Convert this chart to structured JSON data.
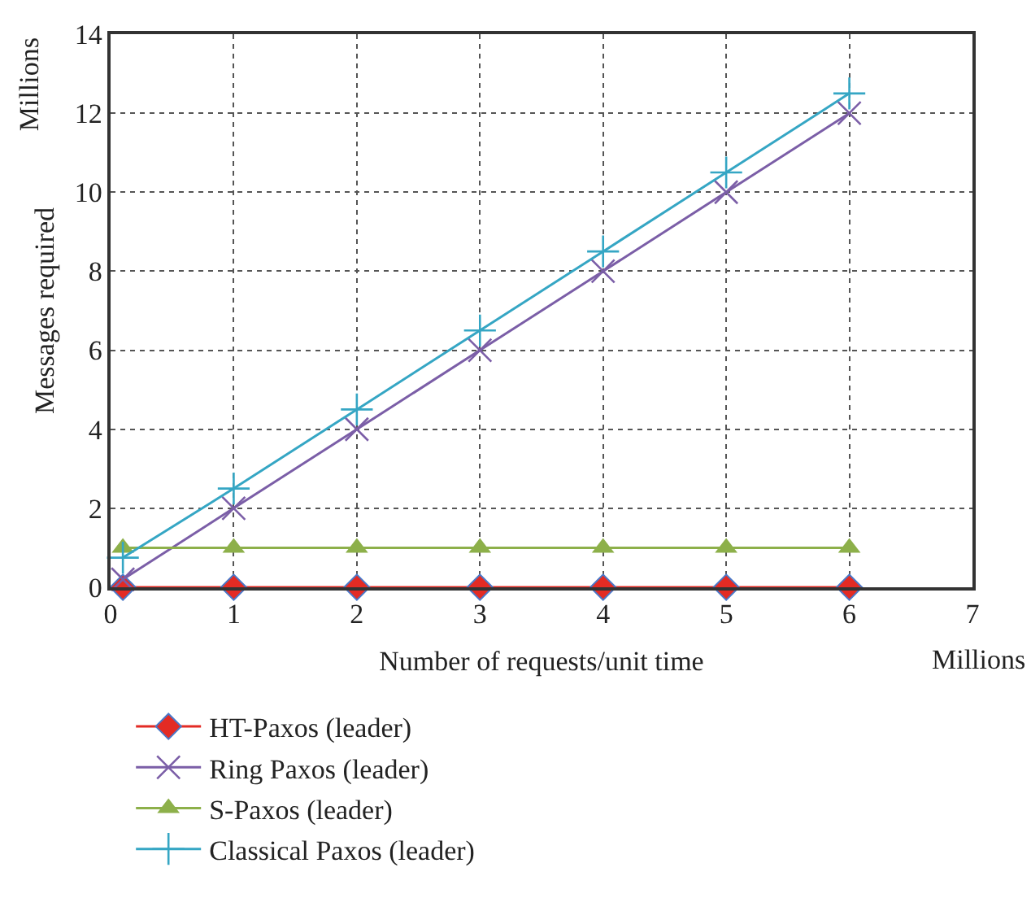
{
  "chart_data": {
    "type": "line",
    "xlabel": "Number of requests/unit time",
    "ylabel": "Messages required",
    "annotations": [
      "Millions",
      "Millions"
    ],
    "x": [
      0.1,
      1,
      2,
      3,
      4,
      5,
      6
    ],
    "series": [
      {
        "name": "HT-Paxos (leader)",
        "color": "#e32b24",
        "marker": "diamond",
        "values": [
          0,
          0,
          0,
          0,
          0,
          0,
          0
        ]
      },
      {
        "name": "Ring Paxos (leader)",
        "color": "#7b5ea7",
        "marker": "x",
        "values": [
          0.2,
          2,
          4,
          6,
          8,
          10,
          12
        ]
      },
      {
        "name": "S-Paxos (leader)",
        "color": "#8db04a",
        "marker": "triangle",
        "values": [
          1,
          1,
          1,
          1,
          1,
          1,
          1
        ]
      },
      {
        "name": "Classical Paxos (leader)",
        "color": "#35a6c4",
        "marker": "cross",
        "values": [
          0.75,
          2.5,
          4.5,
          6.5,
          8.5,
          10.5,
          12.5
        ]
      }
    ],
    "xlim": [
      0,
      7
    ],
    "xticks": [
      0,
      1,
      2,
      3,
      4,
      5,
      6,
      7
    ],
    "ylim": [
      0,
      14
    ],
    "yticks": [
      0,
      2,
      4,
      6,
      8,
      10,
      12,
      14
    ],
    "grid": true,
    "legend": "bottom",
    "line_style": "solid"
  }
}
